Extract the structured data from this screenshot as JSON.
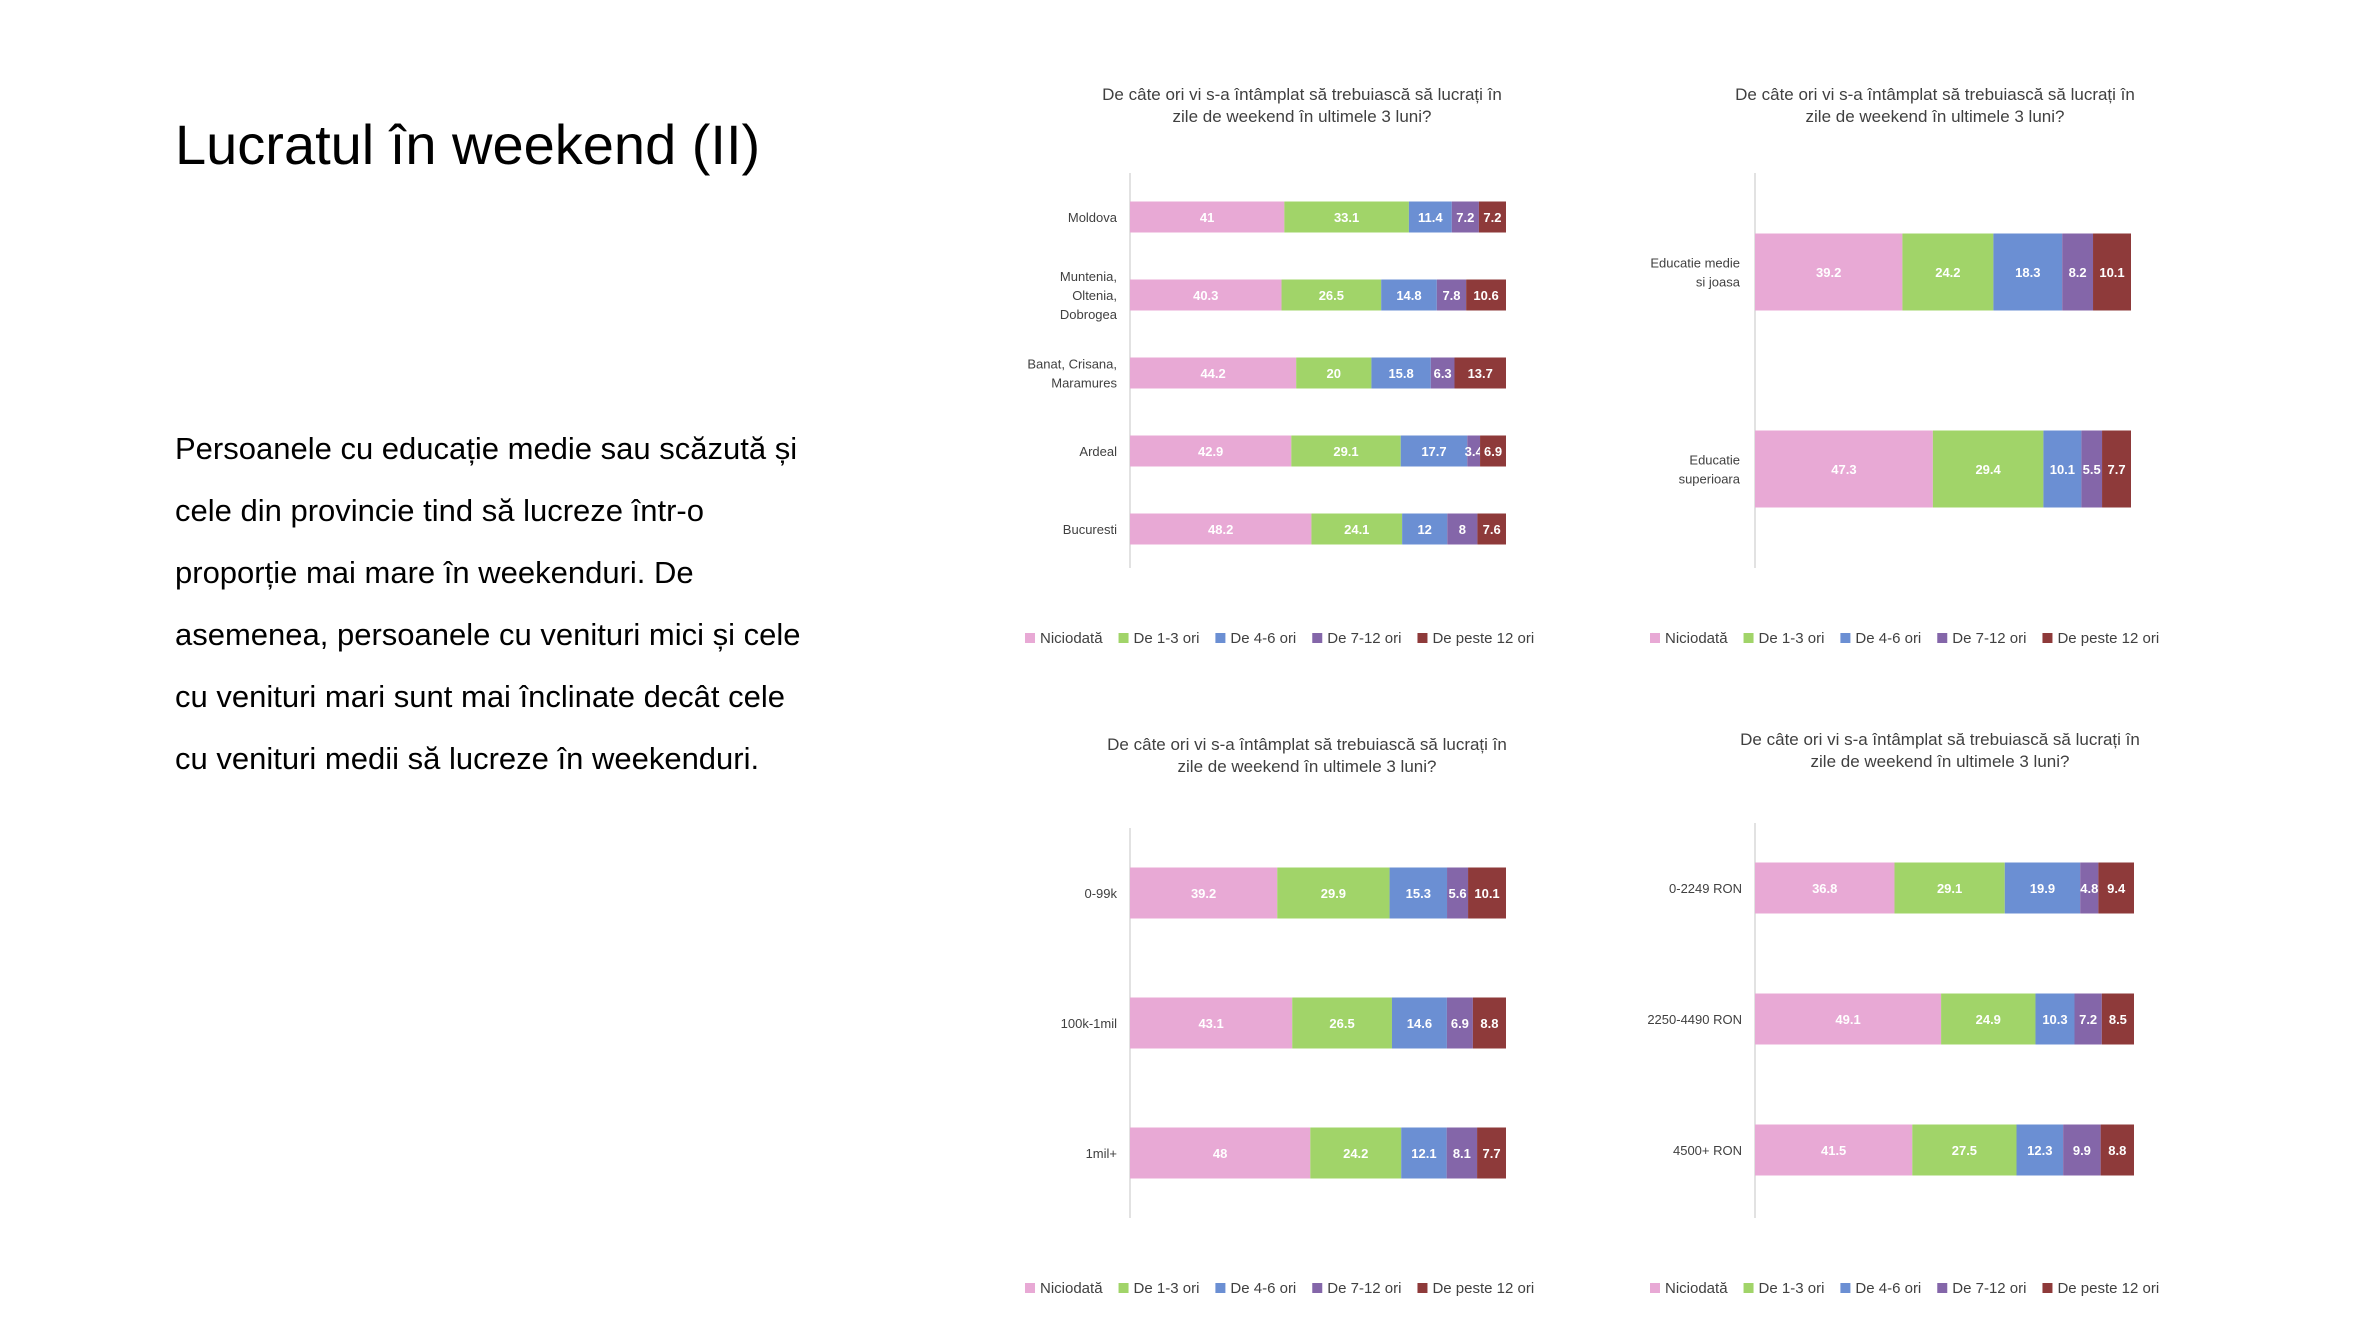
{
  "slide": {
    "title": "Lucratul în weekend (II)",
    "body_lines": [
      "Persoanele cu educație medie sau scăzută și",
      "cele din provincie tind să lucreze într-o",
      "proporție mai mare în weekenduri.  De",
      "asemenea, persoanele cu venituri mici și cele",
      "cu venituri mari sunt mai înclinate decât cele",
      "cu venituri medii să lucreze în weekenduri."
    ]
  },
  "series_names": [
    "Niciodată",
    "De 1-3 ori",
    "De 4-6 ori",
    "De 7-12 ori",
    "De peste 12 ori"
  ],
  "series_colors": [
    "#e8a9d5",
    "#a1d469",
    "#6b8fd3",
    "#8466a9",
    "#8e3a3a"
  ],
  "chart_data": [
    {
      "type": "bar",
      "stacked": true,
      "orientation": "horizontal",
      "title_lines": [
        "De câte ori vi s-a întâmplat să trebuiască să lucrați în",
        "zile de weekend în ultimele 3 luni?"
      ],
      "categories": [
        [
          "Moldova"
        ],
        [
          "Muntenia,",
          "Oltenia,",
          "Dobrogea"
        ],
        [
          "Banat, Crisana,",
          "Maramures"
        ],
        [
          "Ardeal"
        ],
        [
          "Bucuresti"
        ]
      ],
      "series": [
        {
          "name": "Niciodată",
          "values": [
            41,
            40.3,
            44.2,
            42.9,
            48.2
          ]
        },
        {
          "name": "De 1-3 ori",
          "values": [
            33.1,
            26.5,
            20,
            29.1,
            24.1
          ]
        },
        {
          "name": "De 4-6 ori",
          "values": [
            11.4,
            14.8,
            15.8,
            17.7,
            12
          ]
        },
        {
          "name": "De 7-12 ori",
          "values": [
            7.2,
            7.8,
            6.3,
            3.4,
            8
          ]
        },
        {
          "name": "De peste 12 ori",
          "values": [
            7.2,
            10.6,
            13.7,
            6.9,
            7.6
          ]
        }
      ],
      "legend_position": "bottom",
      "grid": false
    },
    {
      "type": "bar",
      "stacked": true,
      "orientation": "horizontal",
      "title_lines": [
        "De câte ori vi s-a întâmplat să trebuiască să lucrați în",
        "zile de weekend în ultimele 3 luni?"
      ],
      "categories": [
        [
          "Educatie medie",
          "si joasa"
        ],
        [
          "Educatie",
          "superioara"
        ]
      ],
      "series": [
        {
          "name": "Niciodată",
          "values": [
            39.2,
            47.3
          ]
        },
        {
          "name": "De 1-3 ori",
          "values": [
            24.2,
            29.4
          ]
        },
        {
          "name": "De 4-6 ori",
          "values": [
            18.3,
            10.1
          ]
        },
        {
          "name": "De 7-12 ori",
          "values": [
            8.2,
            5.5
          ]
        },
        {
          "name": "De peste 12 ori",
          "values": [
            10.1,
            7.7
          ]
        }
      ],
      "legend_position": "bottom",
      "grid": false
    },
    {
      "type": "bar",
      "stacked": true,
      "orientation": "horizontal",
      "title_lines": [
        "De câte ori vi s-a întâmplat să trebuiască să lucrați în",
        "zile de weekend în ultimele 3 luni?"
      ],
      "categories": [
        [
          "0-99k"
        ],
        [
          "100k-1mil"
        ],
        [
          "1mil+"
        ]
      ],
      "series": [
        {
          "name": "Niciodată",
          "values": [
            39.2,
            43.1,
            48
          ]
        },
        {
          "name": "De 1-3 ori",
          "values": [
            29.9,
            26.5,
            24.2
          ]
        },
        {
          "name": "De 4-6 ori",
          "values": [
            15.3,
            14.6,
            12.1
          ]
        },
        {
          "name": "De 7-12 ori",
          "values": [
            5.6,
            6.9,
            8.1
          ]
        },
        {
          "name": "De peste 12 ori",
          "values": [
            10.1,
            8.8,
            7.7
          ]
        }
      ],
      "legend_position": "bottom",
      "grid": false
    },
    {
      "type": "bar",
      "stacked": true,
      "orientation": "horizontal",
      "title_lines": [
        "De câte ori vi s-a întâmplat să trebuiască să lucrați în",
        "zile de weekend în ultimele 3 luni?"
      ],
      "categories": [
        [
          "0-2249 RON"
        ],
        [
          "2250-4490 RON"
        ],
        [
          "4500+ RON"
        ]
      ],
      "series": [
        {
          "name": "Niciodată",
          "values": [
            36.8,
            49.1,
            41.5
          ]
        },
        {
          "name": "De 1-3 ori",
          "values": [
            29.1,
            24.9,
            27.5
          ]
        },
        {
          "name": "De 4-6 ori",
          "values": [
            19.9,
            10.3,
            12.3
          ]
        },
        {
          "name": "De 7-12 ori",
          "values": [
            4.8,
            7.2,
            9.9
          ]
        },
        {
          "name": "De peste 12 ori",
          "values": [
            9.4,
            8.5,
            8.8
          ]
        }
      ],
      "legend_position": "bottom",
      "grid": false
    }
  ]
}
